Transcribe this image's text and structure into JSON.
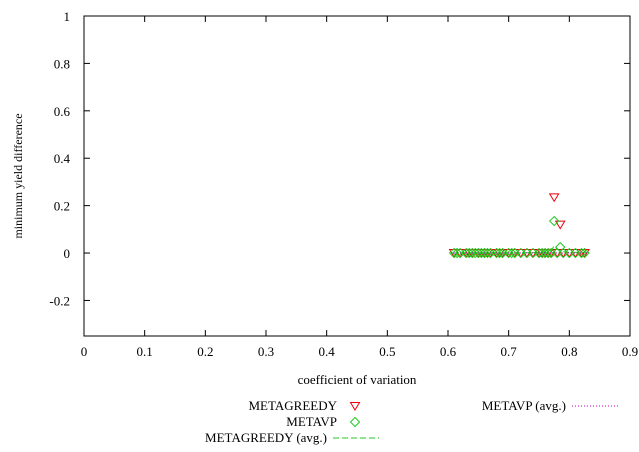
{
  "chart_data": {
    "type": "scatter",
    "xlabel": "coefficient of variation",
    "ylabel": "minimum yield difference",
    "xlim": [
      0,
      0.9
    ],
    "ylim": [
      -0.35,
      1.0
    ],
    "x_ticks": [
      "0",
      "0.1",
      "0.2",
      "0.3",
      "0.4",
      "0.5",
      "0.6",
      "0.7",
      "0.8",
      "0.9"
    ],
    "y_ticks": [
      "-0.2",
      "0",
      "0.2",
      "0.4",
      "0.6",
      "0.8",
      "1"
    ],
    "grid": false,
    "legend_position": "below",
    "series": [
      {
        "name": "METAGREEDY",
        "kind": "points",
        "marker": "triangle-down",
        "color": "#e8000b",
        "x": [
          0.61,
          0.62,
          0.63,
          0.635,
          0.64,
          0.65,
          0.655,
          0.66,
          0.665,
          0.67,
          0.68,
          0.685,
          0.69,
          0.7,
          0.71,
          0.72,
          0.73,
          0.74,
          0.75,
          0.755,
          0.76,
          0.765,
          0.77,
          0.775,
          0.78,
          0.785,
          0.79,
          0.8,
          0.81,
          0.82,
          0.825
        ],
        "y": [
          0,
          0,
          0,
          0,
          0,
          0,
          0,
          0,
          0,
          0,
          0,
          0,
          0,
          0,
          0,
          0,
          0,
          0,
          0,
          0,
          0,
          0,
          0,
          0.235,
          0,
          0.12,
          0,
          0,
          0,
          0,
          0
        ]
      },
      {
        "name": "METAVP",
        "kind": "points",
        "marker": "diamond",
        "color": "#22cc22",
        "x": [
          0.61,
          0.615,
          0.62,
          0.63,
          0.635,
          0.64,
          0.645,
          0.65,
          0.655,
          0.66,
          0.665,
          0.67,
          0.68,
          0.685,
          0.69,
          0.7,
          0.705,
          0.71,
          0.72,
          0.73,
          0.74,
          0.75,
          0.755,
          0.76,
          0.765,
          0.77,
          0.775,
          0.78,
          0.785,
          0.79,
          0.8,
          0.81,
          0.82,
          0.825
        ],
        "y": [
          0,
          0,
          0,
          0,
          0,
          0,
          0,
          0,
          0,
          0,
          0,
          0,
          0,
          0,
          0,
          0,
          0,
          0,
          0,
          0,
          0,
          0,
          0,
          0,
          0,
          0,
          0.135,
          0,
          0.025,
          0,
          0,
          0,
          0,
          0
        ]
      },
      {
        "name": "METAGREEDY (avg.)",
        "kind": "line",
        "dash": "long",
        "color": "#22cc22",
        "x": [
          0.605,
          0.65,
          0.7,
          0.74,
          0.76,
          0.77,
          0.775,
          0.78,
          0.785,
          0.79,
          0.8,
          0.83
        ],
        "y": [
          0,
          0,
          0,
          0.002,
          0.008,
          0.01,
          0.03,
          0.015,
          0.01,
          0.006,
          0.003,
          0.003
        ]
      },
      {
        "name": "METAVP (avg.)",
        "kind": "line",
        "dash": "dotted",
        "color": "#cc00cc",
        "x": [
          0.605,
          0.83
        ],
        "y": [
          0,
          0
        ]
      }
    ]
  }
}
